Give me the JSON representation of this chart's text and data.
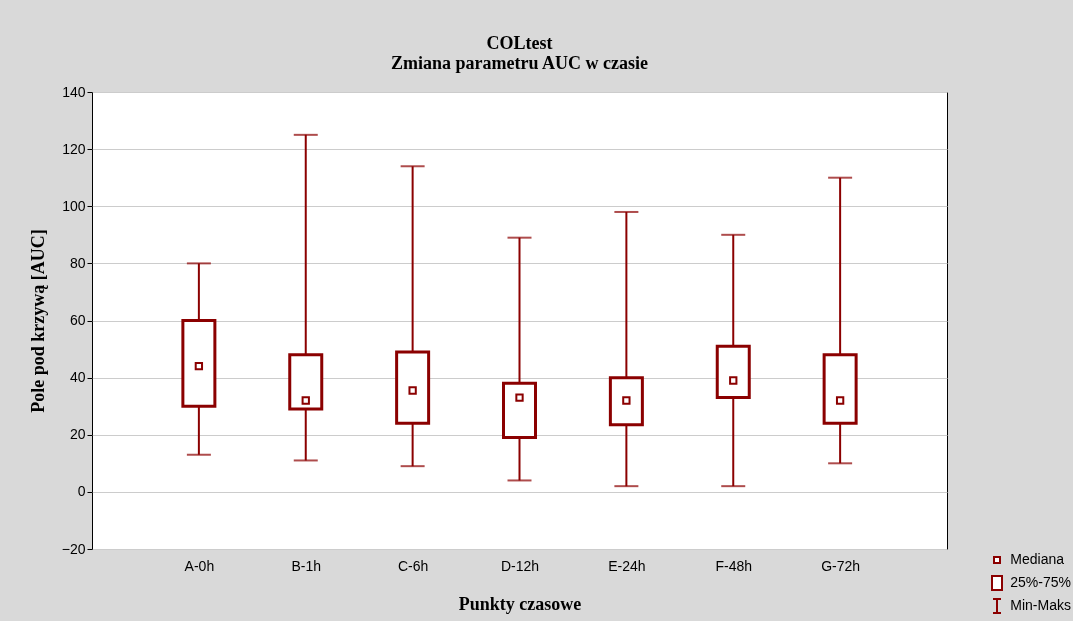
{
  "chart_data": {
    "type": "box",
    "title": "COLtest",
    "subtitle": "Zmiana parametru AUC w czasie",
    "xlabel": "Punkty czasowe",
    "ylabel": "Pole pod krzywą [AUC]",
    "categories": [
      "A-0h",
      "B-1h",
      "C-6h",
      "D-12h",
      "E-24h",
      "F-48h",
      "G-72h"
    ],
    "boxes": [
      {
        "low": 13,
        "q1": 30,
        "median": 44,
        "q3": 60,
        "high": 80
      },
      {
        "low": 11,
        "q1": 29,
        "median": 32,
        "q3": 48,
        "high": 125
      },
      {
        "low": 9,
        "q1": 24,
        "median": 35.5,
        "q3": 49,
        "high": 114
      },
      {
        "low": 4,
        "q1": 19,
        "median": 33,
        "q3": 38,
        "high": 89
      },
      {
        "low": 2,
        "q1": 23.5,
        "median": 32,
        "q3": 40,
        "high": 98
      },
      {
        "low": 2,
        "q1": 33,
        "median": 39,
        "q3": 51,
        "high": 90
      },
      {
        "low": 10,
        "q1": 24,
        "median": 32,
        "q3": 48,
        "high": 110
      }
    ],
    "color": "#8b0000",
    "ylim": [
      -20,
      140
    ],
    "yticks": [
      -20,
      0,
      20,
      40,
      60,
      80,
      100,
      120,
      140
    ],
    "grid": "y",
    "marker": "square",
    "annotations": [
      "Mediana",
      "25%-75%",
      "Min-Maks"
    ]
  }
}
